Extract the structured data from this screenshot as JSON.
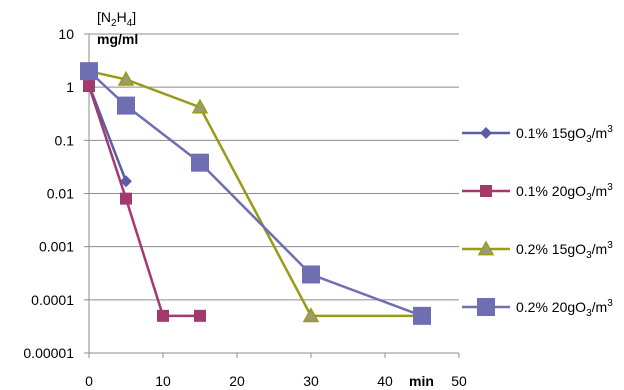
{
  "chart_data": {
    "type": "line",
    "y_scale": "log",
    "ylim": [
      1e-05,
      10
    ],
    "xlim": [
      0,
      50
    ],
    "x_ticks": [
      "0",
      "10",
      "20",
      "30",
      "40",
      "50"
    ],
    "y_ticks": [
      "10",
      "1",
      "0.1",
      "0.01",
      "0.001",
      "0.0001",
      "0.00001"
    ],
    "ylabel_line1": "[N2H4]",
    "ylabel_line2": "mg/ml",
    "xunit": "min",
    "grid": "horizontal",
    "legend_position": "right",
    "series": [
      {
        "name": "0.1% 15gO3/m3",
        "color": "#5b5ea6",
        "marker": "diamond",
        "x": [
          0,
          5
        ],
        "y": [
          1.1,
          0.017
        ]
      },
      {
        "name": "0.1% 20gO3/m3",
        "color": "#a23a6e",
        "marker": "square-small",
        "x": [
          0,
          5,
          10,
          15
        ],
        "y": [
          1.05,
          0.008,
          5e-05,
          5e-05
        ]
      },
      {
        "name": "0.2% 15gO3/m3",
        "color": "#9a9a1a",
        "marker": "triangle",
        "x": [
          0,
          5,
          15,
          30,
          45
        ],
        "y": [
          2.0,
          1.4,
          0.42,
          5e-05,
          5e-05
        ]
      },
      {
        "name": "0.2% 20gO3/m3",
        "color": "#6e6eb3",
        "marker": "square-large",
        "x": [
          0,
          5,
          15,
          30,
          45
        ],
        "y": [
          2.0,
          0.45,
          0.038,
          0.0003,
          5e-05
        ]
      }
    ]
  }
}
